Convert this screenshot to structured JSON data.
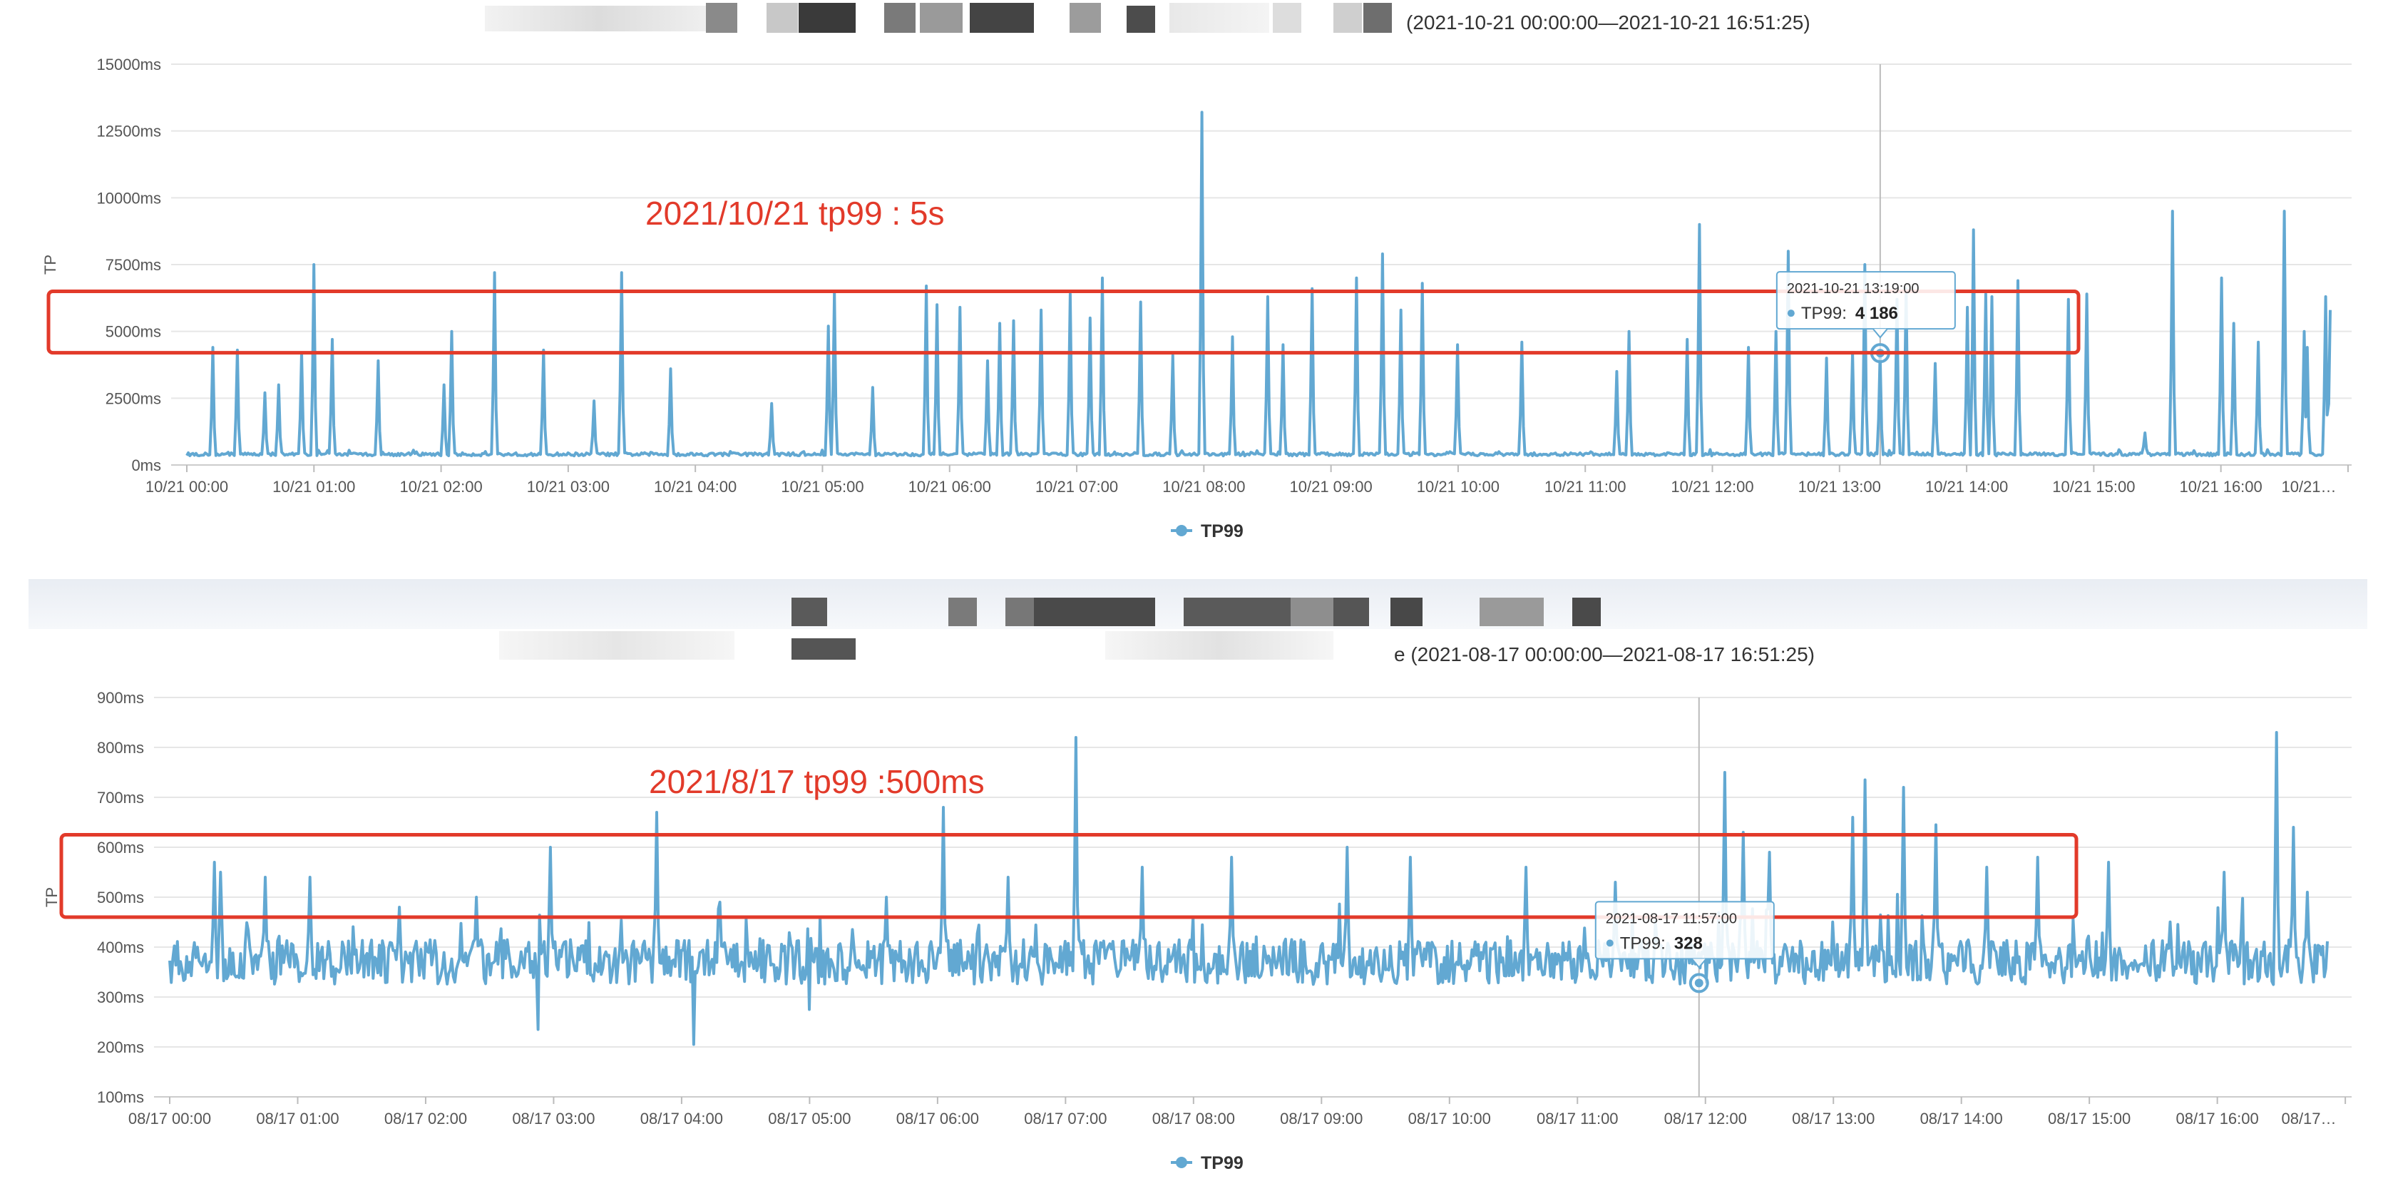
{
  "colors": {
    "series": "#62a8d2",
    "annotation": "#e23a2a",
    "grid": "#e6e6e6",
    "axis_text": "#555555",
    "redaction_dark": "#3f3f3f",
    "redaction_mid": "#8a8a8a",
    "redaction_light": "#d8d8d8"
  },
  "chart_data": [
    {
      "type": "line",
      "title": "(2021-10-21 00:00:00—2021-10-21 16:51:25)",
      "ylabel": "TP",
      "ylim": [
        0,
        15000
      ],
      "yticks": [
        "0ms",
        "2500ms",
        "5000ms",
        "7500ms",
        "10000ms",
        "12500ms",
        "15000ms"
      ],
      "xticks": [
        "10/21 00:00",
        "10/21 01:00",
        "10/21 02:00",
        "10/21 03:00",
        "10/21 04:00",
        "10/21 05:00",
        "10/21 06:00",
        "10/21 07:00",
        "10/21 08:00",
        "10/21 09:00",
        "10/21 10:00",
        "10/21 11:00",
        "10/21 12:00",
        "10/21 13:00",
        "10/21 14:00",
        "10/21 15:00",
        "10/21 16:00",
        "10/21…"
      ],
      "x_range_hours": [
        0,
        16.86
      ],
      "baseline_ms": 400,
      "legend": "TP99",
      "legend_position": "bottom-center",
      "annotation": "2021/10/21 tp99 : 5s",
      "highlight_band_ms": [
        4200,
        6500
      ],
      "tooltip": {
        "time": "2021-10-21 13:19:00",
        "label": "TP99:",
        "value": "4 186",
        "x_hours": 13.32,
        "y_ms": 4186
      },
      "series": [
        {
          "name": "TP99",
          "spikes": [
            [
              0.2,
              4400
            ],
            [
              0.4,
              4300
            ],
            [
              0.62,
              2700
            ],
            [
              0.72,
              3000
            ],
            [
              0.9,
              4200
            ],
            [
              1.0,
              7500
            ],
            [
              1.15,
              4700
            ],
            [
              1.5,
              3900
            ],
            [
              2.02,
              3000
            ],
            [
              2.08,
              5000
            ],
            [
              2.42,
              7200
            ],
            [
              2.8,
              4300
            ],
            [
              3.2,
              2400
            ],
            [
              3.42,
              7200
            ],
            [
              3.8,
              3600
            ],
            [
              4.6,
              2300
            ],
            [
              5.05,
              5200
            ],
            [
              5.1,
              6500
            ],
            [
              5.4,
              2900
            ],
            [
              5.82,
              6700
            ],
            [
              5.9,
              6000
            ],
            [
              6.08,
              5900
            ],
            [
              6.3,
              3900
            ],
            [
              6.4,
              5300
            ],
            [
              6.5,
              5400
            ],
            [
              6.72,
              5800
            ],
            [
              6.95,
              6400
            ],
            [
              7.1,
              5500
            ],
            [
              7.2,
              7000
            ],
            [
              7.5,
              6100
            ],
            [
              7.75,
              4100
            ],
            [
              7.98,
              13200
            ],
            [
              8.22,
              4800
            ],
            [
              8.5,
              6300
            ],
            [
              8.62,
              4500
            ],
            [
              8.85,
              6600
            ],
            [
              9.2,
              7000
            ],
            [
              9.4,
              7900
            ],
            [
              9.55,
              5800
            ],
            [
              9.72,
              6800
            ],
            [
              10.0,
              4500
            ],
            [
              10.5,
              4600
            ],
            [
              11.25,
              3500
            ],
            [
              11.35,
              5000
            ],
            [
              11.8,
              4700
            ],
            [
              11.9,
              9000
            ],
            [
              12.28,
              4400
            ],
            [
              12.5,
              5000
            ],
            [
              12.6,
              8000
            ],
            [
              12.9,
              4000
            ],
            [
              13.1,
              4200
            ],
            [
              13.2,
              7500
            ],
            [
              13.32,
              4186
            ],
            [
              13.45,
              6200
            ],
            [
              13.52,
              6600
            ],
            [
              13.75,
              3800
            ],
            [
              14.0,
              5900
            ],
            [
              14.05,
              8800
            ],
            [
              14.15,
              6400
            ],
            [
              14.2,
              6300
            ],
            [
              14.4,
              6900
            ],
            [
              14.8,
              6200
            ],
            [
              14.95,
              6400
            ],
            [
              15.4,
              1200
            ],
            [
              15.62,
              9500
            ],
            [
              16.0,
              7000
            ],
            [
              16.1,
              5300
            ],
            [
              16.3,
              4600
            ],
            [
              16.5,
              9500
            ],
            [
              16.65,
              5000
            ],
            [
              16.68,
              4400
            ],
            [
              16.82,
              6300
            ],
            [
              16.86,
              5800
            ]
          ]
        }
      ]
    },
    {
      "type": "line",
      "title": "e (2021-08-17 00:00:00—2021-08-17 16:51:25)",
      "ylabel": "TP",
      "ylim": [
        100,
        900
      ],
      "yticks": [
        "100ms",
        "200ms",
        "300ms",
        "400ms",
        "500ms",
        "600ms",
        "700ms",
        "800ms",
        "900ms"
      ],
      "xticks": [
        "08/17 00:00",
        "08/17 01:00",
        "08/17 02:00",
        "08/17 03:00",
        "08/17 04:00",
        "08/17 05:00",
        "08/17 06:00",
        "08/17 07:00",
        "08/17 08:00",
        "08/17 09:00",
        "08/17 10:00",
        "08/17 11:00",
        "08/17 12:00",
        "08/17 13:00",
        "08/17 14:00",
        "08/17 15:00",
        "08/17 16:00",
        "08/17…"
      ],
      "x_range_hours": [
        0,
        16.86
      ],
      "baseline_ms": 370,
      "legend": "TP99",
      "legend_position": "bottom-center",
      "annotation": "2021/8/17 tp99 :500ms",
      "highlight_band_ms": [
        460,
        625
      ],
      "tooltip": {
        "time": "2021-08-17 11:57:00",
        "label": "TP99:",
        "value": "328",
        "x_hours": 11.95,
        "y_ms": 328
      },
      "series": [
        {
          "name": "TP99",
          "spikes": [
            [
              0.35,
              570
            ],
            [
              0.4,
              550
            ],
            [
              0.75,
              540
            ],
            [
              1.1,
              540
            ],
            [
              1.8,
              480
            ],
            [
              2.4,
              500
            ],
            [
              2.98,
              600
            ],
            [
              3.8,
              670
            ],
            [
              4.3,
              490
            ],
            [
              5.0,
              560
            ],
            [
              5.6,
              500
            ],
            [
              6.05,
              680
            ],
            [
              6.55,
              540
            ],
            [
              7.08,
              820
            ],
            [
              7.6,
              560
            ],
            [
              8.3,
              580
            ],
            [
              9.2,
              600
            ],
            [
              9.7,
              580
            ],
            [
              10.6,
              560
            ],
            [
              11.3,
              530
            ],
            [
              12.15,
              750
            ],
            [
              12.3,
              630
            ],
            [
              12.5,
              590
            ],
            [
              13.15,
              660
            ],
            [
              13.25,
              735
            ],
            [
              13.55,
              720
            ],
            [
              13.8,
              645
            ],
            [
              14.2,
              560
            ],
            [
              14.6,
              580
            ],
            [
              15.15,
              570
            ],
            [
              16.05,
              550
            ],
            [
              16.46,
              830
            ],
            [
              16.6,
              640
            ],
            [
              16.7,
              510
            ]
          ],
          "dips": [
            [
              2.88,
              235
            ],
            [
              4.1,
              205
            ],
            [
              5.0,
              275
            ]
          ]
        }
      ]
    }
  ]
}
